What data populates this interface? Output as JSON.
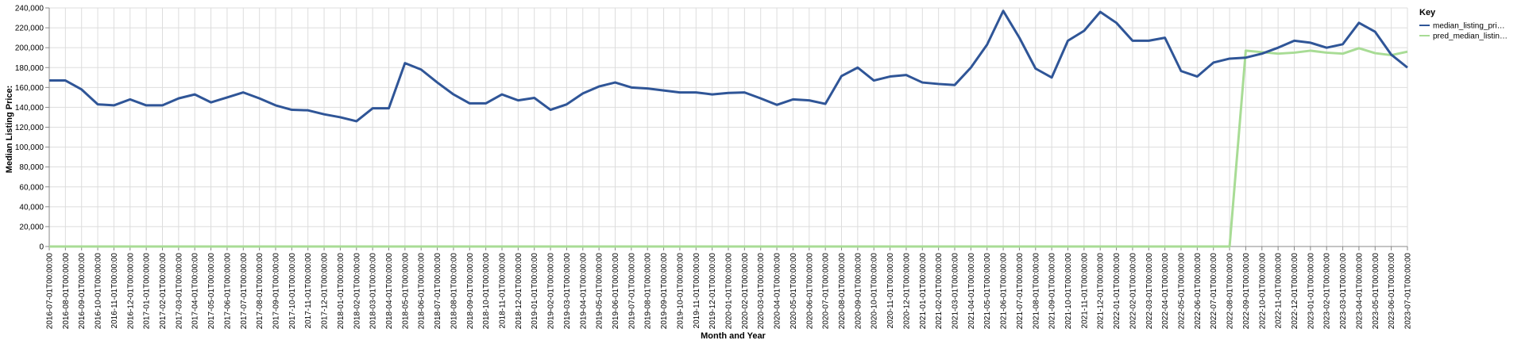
{
  "chart_data": {
    "type": "line",
    "xlabel": "Month and Year",
    "ylabel": "Median Listing Price:",
    "ylim": [
      0,
      240000
    ],
    "y_ticks": [
      "0",
      "20,000",
      "40,000",
      "60,000",
      "80,000",
      "100,000",
      "120,000",
      "140,000",
      "160,000",
      "180,000",
      "200,000",
      "220,000",
      "240,000"
    ],
    "grid": true,
    "legend_placement": "top-right",
    "legend_title": "Key",
    "x": [
      "2016-07-01T00:00:00",
      "2016-08-01T00:00:00",
      "2016-09-01T00:00:00",
      "2016-10-01T00:00:00",
      "2016-11-01T00:00:00",
      "2016-12-01T00:00:00",
      "2017-01-01T00:00:00",
      "2017-02-01T00:00:00",
      "2017-03-01T00:00:00",
      "2017-04-01T00:00:00",
      "2017-05-01T00:00:00",
      "2017-06-01T00:00:00",
      "2017-07-01T00:00:00",
      "2017-08-01T00:00:00",
      "2017-09-01T00:00:00",
      "2017-10-01T00:00:00",
      "2017-11-01T00:00:00",
      "2017-12-01T00:00:00",
      "2018-01-01T00:00:00",
      "2018-02-01T00:00:00",
      "2018-03-01T00:00:00",
      "2018-04-01T00:00:00",
      "2018-05-01T00:00:00",
      "2018-06-01T00:00:00",
      "2018-07-01T00:00:00",
      "2018-08-01T00:00:00",
      "2018-09-01T00:00:00",
      "2018-10-01T00:00:00",
      "2018-11-01T00:00:00",
      "2018-12-01T00:00:00",
      "2019-01-01T00:00:00",
      "2019-02-01T00:00:00",
      "2019-03-01T00:00:00",
      "2019-04-01T00:00:00",
      "2019-05-01T00:00:00",
      "2019-06-01T00:00:00",
      "2019-07-01T00:00:00",
      "2019-08-01T00:00:00",
      "2019-09-01T00:00:00",
      "2019-10-01T00:00:00",
      "2019-11-01T00:00:00",
      "2019-12-01T00:00:00",
      "2020-01-01T00:00:00",
      "2020-02-01T00:00:00",
      "2020-03-01T00:00:00",
      "2020-04-01T00:00:00",
      "2020-05-01T00:00:00",
      "2020-06-01T00:00:00",
      "2020-07-01T00:00:00",
      "2020-08-01T00:00:00",
      "2020-09-01T00:00:00",
      "2020-10-01T00:00:00",
      "2020-11-01T00:00:00",
      "2020-12-01T00:00:00",
      "2021-01-01T00:00:00",
      "2021-02-01T00:00:00",
      "2021-03-01T00:00:00",
      "2021-04-01T00:00:00",
      "2021-05-01T00:00:00",
      "2021-06-01T00:00:00",
      "2021-07-01T00:00:00",
      "2021-08-01T00:00:00",
      "2021-09-01T00:00:00",
      "2021-10-01T00:00:00",
      "2021-11-01T00:00:00",
      "2021-12-01T00:00:00",
      "2022-01-01T00:00:00",
      "2022-02-01T00:00:00",
      "2022-03-01T00:00:00",
      "2022-04-01T00:00:00",
      "2022-05-01T00:00:00",
      "2022-06-01T00:00:00",
      "2022-07-01T00:00:00",
      "2022-08-01T00:00:00",
      "2022-09-01T00:00:00",
      "2022-10-01T00:00:00",
      "2022-11-01T00:00:00",
      "2022-12-01T00:00:00",
      "2023-01-01T00:00:00",
      "2023-02-01T00:00:00",
      "2023-03-01T00:00:00",
      "2023-04-01T00:00:00",
      "2023-05-01T00:00:00",
      "2023-06-01T00:00:00",
      "2023-07-01T00:00:00"
    ],
    "series": [
      {
        "name": "median_listing_pri…",
        "color": "#2f5597",
        "values": [
          167000,
          167000,
          158000,
          143000,
          142000,
          148000,
          142000,
          142000,
          149000,
          153000,
          145000,
          150000,
          155000,
          149000,
          142000,
          137500,
          137000,
          133000,
          130000,
          126000,
          139000,
          139000,
          184500,
          178000,
          165000,
          153000,
          144000,
          144000,
          153000,
          147000,
          149500,
          137500,
          143000,
          154000,
          161000,
          165000,
          160000,
          159000,
          157000,
          155000,
          155000,
          153000,
          154500,
          155000,
          149000,
          142500,
          148000,
          147000,
          143500,
          171500,
          180000,
          167000,
          171000,
          172500,
          165000,
          163500,
          162500,
          180000,
          203000,
          237000,
          210000,
          179000,
          170000,
          207000,
          217000,
          236000,
          225000,
          207000,
          207000,
          210000,
          176500,
          171000,
          185000,
          189000,
          190000,
          194000,
          200000,
          207000,
          205000,
          200000,
          203500,
          225000,
          216000,
          193000,
          180000
        ]
      },
      {
        "name": "pred_median_listin…",
        "color": "#a8dc95",
        "values": [
          0,
          0,
          0,
          0,
          0,
          0,
          0,
          0,
          0,
          0,
          0,
          0,
          0,
          0,
          0,
          0,
          0,
          0,
          0,
          0,
          0,
          0,
          0,
          0,
          0,
          0,
          0,
          0,
          0,
          0,
          0,
          0,
          0,
          0,
          0,
          0,
          0,
          0,
          0,
          0,
          0,
          0,
          0,
          0,
          0,
          0,
          0,
          0,
          0,
          0,
          0,
          0,
          0,
          0,
          0,
          0,
          0,
          0,
          0,
          0,
          0,
          0,
          0,
          0,
          0,
          0,
          0,
          0,
          0,
          0,
          0,
          0,
          0,
          0,
          197000,
          195500,
          194000,
          195000,
          197000,
          195000,
          194000,
          199500,
          194500,
          192500,
          196000
        ]
      }
    ]
  }
}
